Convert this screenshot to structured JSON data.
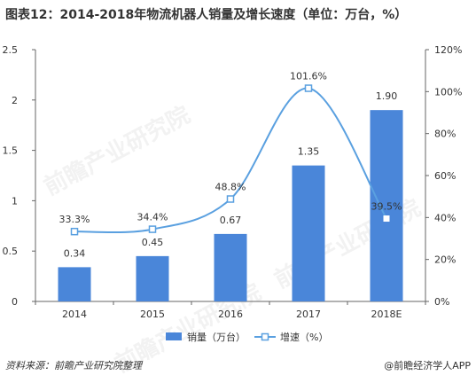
{
  "title": "图表12：2014-2018年物流机器人销量及增长速度（单位：万台，%）",
  "source": "资料来源：前瞻产业研究院整理",
  "brand": "@前瞻经济学人APP",
  "watermark": "前瞻产业研究院",
  "colors": {
    "bar": "#4a86d9",
    "line": "#5aa0e0",
    "axis": "#666666",
    "text": "#333333"
  },
  "chart_data": {
    "type": "bar",
    "categories": [
      "2014",
      "2015",
      "2016",
      "2017",
      "2018E"
    ],
    "series": [
      {
        "name": "销量（万台）",
        "type": "bar",
        "axis": "left",
        "values": [
          0.34,
          0.45,
          0.67,
          1.35,
          1.9
        ],
        "labels": [
          "0.34",
          "0.45",
          "0.67",
          "1.35",
          "1.90"
        ]
      },
      {
        "name": "增速（%）",
        "type": "line",
        "axis": "right",
        "values": [
          33.3,
          34.4,
          48.8,
          101.6,
          39.5
        ],
        "labels": [
          "33.3%",
          "34.4%",
          "48.8%",
          "101.6%",
          "39.5%"
        ]
      }
    ],
    "y_left": {
      "ylim": [
        0,
        2.5
      ],
      "ticks": [
        "0",
        "0.5",
        "1",
        "1.5",
        "2",
        "2.5"
      ],
      "tick_values": [
        0,
        0.5,
        1,
        1.5,
        2,
        2.5
      ]
    },
    "y_right": {
      "ylim": [
        0,
        120
      ],
      "ticks": [
        "0%",
        "20%",
        "40%",
        "60%",
        "80%",
        "100%",
        "120%"
      ],
      "tick_values": [
        0,
        20,
        40,
        60,
        80,
        100,
        120
      ]
    },
    "legend": "bottom",
    "grid": false
  }
}
